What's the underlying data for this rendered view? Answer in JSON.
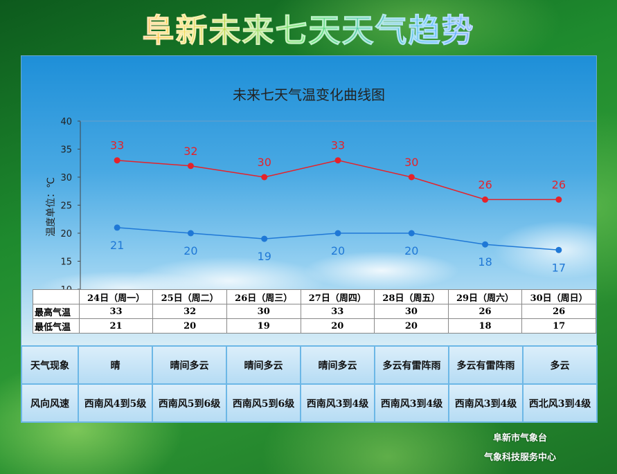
{
  "page_title": "阜新未来七天天气趋势",
  "chart_data": {
    "type": "line",
    "title": "未来七天气温变化曲线图",
    "ylabel": "温度单位：℃",
    "xlabel": "",
    "ylim": [
      10,
      40
    ],
    "yticks": [
      "10",
      "15",
      "20",
      "25",
      "30",
      "35",
      "40"
    ],
    "categories": [
      "24日（周一）",
      "25日（周二）",
      "26日（周三）",
      "27日（周四）",
      "28日（周五）",
      "29日（周六）",
      "30日（周日）"
    ],
    "series": [
      {
        "name": "最高气温",
        "color": "#e5222a",
        "values": [
          33,
          32,
          30,
          33,
          30,
          26,
          26
        ]
      },
      {
        "name": "最低气温",
        "color": "#1f78d6",
        "values": [
          21,
          20,
          19,
          20,
          20,
          18,
          17
        ]
      }
    ],
    "grid": false
  },
  "table": {
    "row_labels": [
      "最高气温",
      "最低气温"
    ]
  },
  "info": {
    "weather_label": "天气现象",
    "weather": [
      "晴",
      "晴间多云",
      "晴间多云",
      "晴间多云",
      "多云有雷阵雨",
      "多云有雷阵雨",
      "多云"
    ],
    "wind_label": "风向风速",
    "wind": [
      "西南风4到5级",
      "西南风5到6级",
      "西南风5到6级",
      "西南风3到4级",
      "西南风3到4级",
      "西南风3到4级",
      "西北风3到4级"
    ]
  },
  "footer": {
    "line1": "阜新市气象台",
    "line2": "气象科技服务中心"
  }
}
